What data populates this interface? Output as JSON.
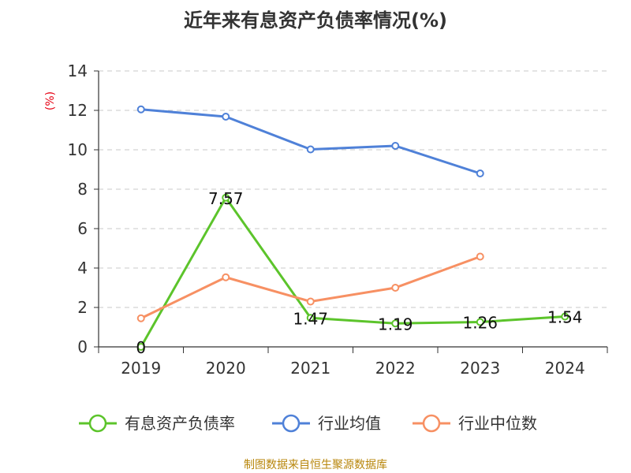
{
  "chart_data": {
    "type": "line",
    "title": "近年来有息资产负债率情况(%)",
    "ylabel": "(%)",
    "xlabel": "",
    "categories": [
      "2019",
      "2020",
      "2021",
      "2022",
      "2023",
      "2024"
    ],
    "ylim": [
      0,
      14
    ],
    "yticks": [
      0,
      2,
      4,
      6,
      8,
      10,
      12,
      14
    ],
    "grid": true,
    "legend_position": "bottom",
    "series": [
      {
        "name": "有息资产负债率",
        "color": "#5cc42b",
        "values": [
          0,
          7.57,
          1.47,
          1.19,
          1.26,
          1.54
        ],
        "labels": [
          "0",
          "7.57",
          "1.47",
          "1.19",
          "1.26",
          "1.54"
        ]
      },
      {
        "name": "行业均值",
        "color": "#4f81d8",
        "values": [
          12.05,
          11.68,
          10.02,
          10.2,
          8.8,
          null
        ]
      },
      {
        "name": "行业中位数",
        "color": "#f79063",
        "values": [
          1.45,
          3.53,
          2.3,
          3.0,
          4.58,
          null
        ]
      }
    ]
  },
  "source": "制图数据来自恒生聚源数据库"
}
